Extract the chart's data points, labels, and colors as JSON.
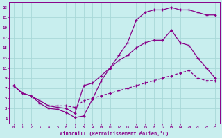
{
  "xlabel": "Windchill (Refroidissement éolien,°C)",
  "background_color": "#c8eeee",
  "grid_color": "#a8d8d8",
  "line_color": "#880088",
  "xlim": [
    -0.5,
    23.5
  ],
  "ylim": [
    0,
    24
  ],
  "xticks": [
    0,
    1,
    2,
    3,
    4,
    5,
    6,
    7,
    8,
    9,
    10,
    11,
    12,
    13,
    14,
    15,
    16,
    17,
    18,
    19,
    20,
    21,
    22,
    23
  ],
  "yticks": [
    1,
    3,
    5,
    7,
    9,
    11,
    13,
    15,
    17,
    19,
    21,
    23
  ],
  "curve1_x": [
    0,
    1,
    2,
    3,
    4,
    5,
    6,
    7,
    8,
    9,
    10,
    11,
    12,
    13,
    14,
    15,
    16,
    17,
    18,
    19,
    20,
    21,
    22,
    23
  ],
  "curve1_y": [
    7.5,
    6.0,
    5.5,
    4.0,
    3.0,
    2.8,
    2.2,
    1.2,
    1.5,
    4.8,
    8.5,
    11.0,
    13.5,
    16.0,
    20.5,
    22.0,
    22.5,
    22.5,
    23.0,
    22.5,
    22.5,
    22.0,
    21.5,
    21.5
  ],
  "curve2_x": [
    0,
    1,
    2,
    3,
    4,
    5,
    6,
    7,
    8,
    9,
    10,
    11,
    12,
    13,
    14,
    15,
    16,
    17,
    18,
    19,
    20,
    21,
    22,
    23
  ],
  "curve2_y": [
    7.5,
    6.0,
    5.5,
    4.5,
    3.5,
    3.2,
    3.0,
    2.0,
    7.5,
    8.0,
    9.5,
    11.0,
    12.5,
    13.5,
    15.0,
    16.0,
    16.5,
    16.5,
    18.5,
    16.0,
    15.5,
    13.0,
    11.0,
    9.0
  ],
  "curve3_x": [
    0,
    1,
    2,
    3,
    4,
    5,
    6,
    7,
    8,
    9,
    10,
    11,
    12,
    13,
    14,
    15,
    16,
    17,
    18,
    19,
    20,
    21,
    22,
    23
  ],
  "curve3_y": [
    7.5,
    6.0,
    5.5,
    4.5,
    3.5,
    3.5,
    3.5,
    3.2,
    4.5,
    5.0,
    5.5,
    6.0,
    6.5,
    7.0,
    7.5,
    8.0,
    8.5,
    9.0,
    9.5,
    10.0,
    10.5,
    9.0,
    8.5,
    8.5
  ]
}
